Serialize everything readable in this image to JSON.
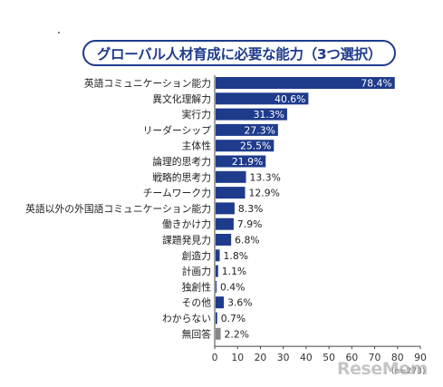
{
  "chart_data": {
    "type": "bar",
    "orientation": "horizontal",
    "title": "グローバル人材育成に必要な能力（3つ選択）",
    "categories": [
      "英語コミュニケーション能力",
      "異文化理解力",
      "実行力",
      "リーダーシップ",
      "主体性",
      "論理的思考力",
      "戦略的思考力",
      "チームワーク力",
      "英語以外の外国語コミュニケーション能力",
      "働きかけ力",
      "課題発見力",
      "創造力",
      "計画力",
      "独創性",
      "その他",
      "わからない",
      "無回答"
    ],
    "values": [
      78.4,
      40.6,
      31.3,
      27.3,
      25.5,
      21.9,
      13.3,
      12.9,
      8.3,
      7.9,
      6.8,
      1.8,
      1.1,
      0.4,
      3.6,
      0.7,
      2.2
    ],
    "value_labels": [
      "78.4%",
      "40.6%",
      "31.3%",
      "27.3%",
      "25.5%",
      "21.9%",
      "13.3%",
      "12.9%",
      "8.3%",
      "7.9%",
      "6.8%",
      "1.8%",
      "1.1%",
      "0.4%",
      "3.6%",
      "0.7%",
      "2.2%"
    ],
    "xlim": [
      0,
      90
    ],
    "xticks": [
      0,
      10,
      20,
      30,
      40,
      50,
      60,
      70,
      80,
      90
    ],
    "n_label": "(n=273)",
    "colors": {
      "bar": "#1f3b8c",
      "bar_last": "#888888",
      "title": "#1f3b8c"
    }
  },
  "watermark": "ReseMom"
}
